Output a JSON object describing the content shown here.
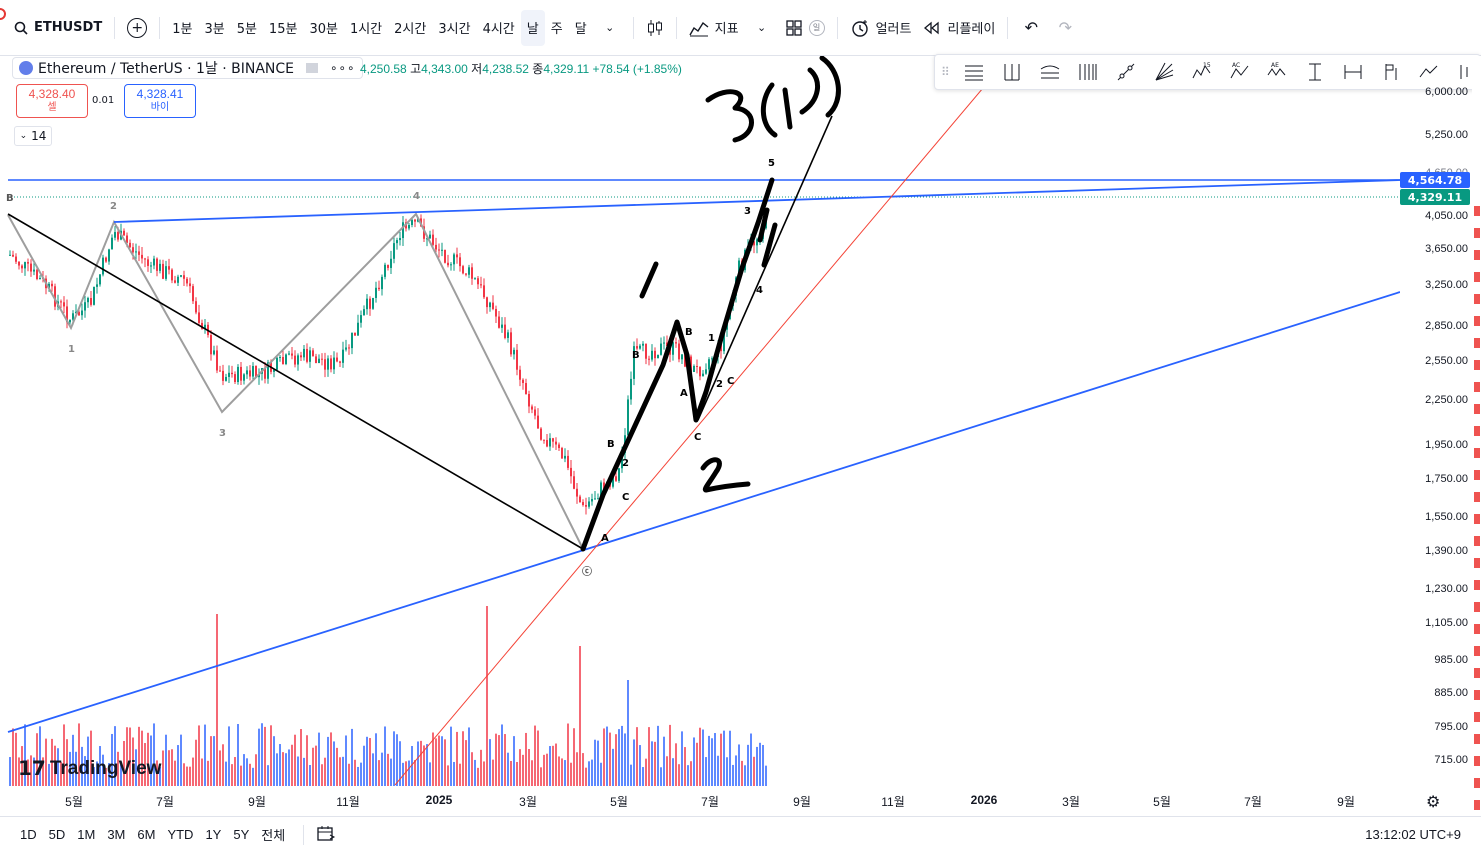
{
  "topbar": {
    "symbol": "ETHUSDT",
    "intervals": [
      "1분",
      "3분",
      "5분",
      "15분",
      "30분",
      "1시간",
      "2시간",
      "3시간",
      "4시간",
      "날",
      "주",
      "달"
    ],
    "active_interval": "날",
    "indicators_label": "지표",
    "alerts_label": "얼러트",
    "replay_label": "리플레이",
    "badge_label": "일"
  },
  "legend": {
    "title": "Ethereum / TetherUS · 1날 · BINANCE",
    "open_label": "",
    "open": "4,250.58",
    "high_label": "고",
    "high": "4,343.00",
    "low_label": "저",
    "low": "4,238.52",
    "close_label": "종",
    "close": "4,329.11",
    "change": "+78.54 (+1.85%)",
    "sell_price": "4,328.40",
    "sell_label": "셀",
    "buy_price": "4,328.41",
    "buy_label": "바이",
    "spread": "0.01",
    "collapsed_count": "14"
  },
  "price_scale": {
    "labels": [
      "6,000.00",
      "5,250.00",
      "4,050.00",
      "3,650.00",
      "3,250.00",
      "2,850.00",
      "2,550.00",
      "2,250.00",
      "1,950.00",
      "1,750.00",
      "1,550.00",
      "1,390.00",
      "1,230.00",
      "1,105.00",
      "985.00",
      "885.00",
      "795.00",
      "715.00"
    ],
    "tag_resistance": "4,564.78",
    "tag_last": "4,329.11",
    "partial_label": "4,650.00",
    "colors": {
      "resistance": "#2962ff",
      "last": "#089981"
    }
  },
  "time_axis": {
    "labels": [
      "5월",
      "7월",
      "9월",
      "11월",
      "2025",
      "3월",
      "5월",
      "7월",
      "9월",
      "11월",
      "2026",
      "3월",
      "5월",
      "7월",
      "9월"
    ]
  },
  "wave_labels": {
    "items": [
      "B",
      "2",
      "1",
      "3",
      "4",
      "B",
      "C",
      "A",
      "B",
      "2",
      "C",
      "B",
      "1",
      "A",
      "2",
      "C",
      "3",
      "4",
      "5",
      "ⓒ"
    ]
  },
  "handwriting": {
    "items": [
      "3(1)",
      "1",
      "2"
    ]
  },
  "bottombar": {
    "ranges": [
      "1D",
      "5D",
      "1M",
      "3M",
      "6M",
      "YTD",
      "1Y",
      "5Y",
      "전체"
    ],
    "clock": "13:12:02 UTC+9"
  },
  "watermark": "TradingView"
}
